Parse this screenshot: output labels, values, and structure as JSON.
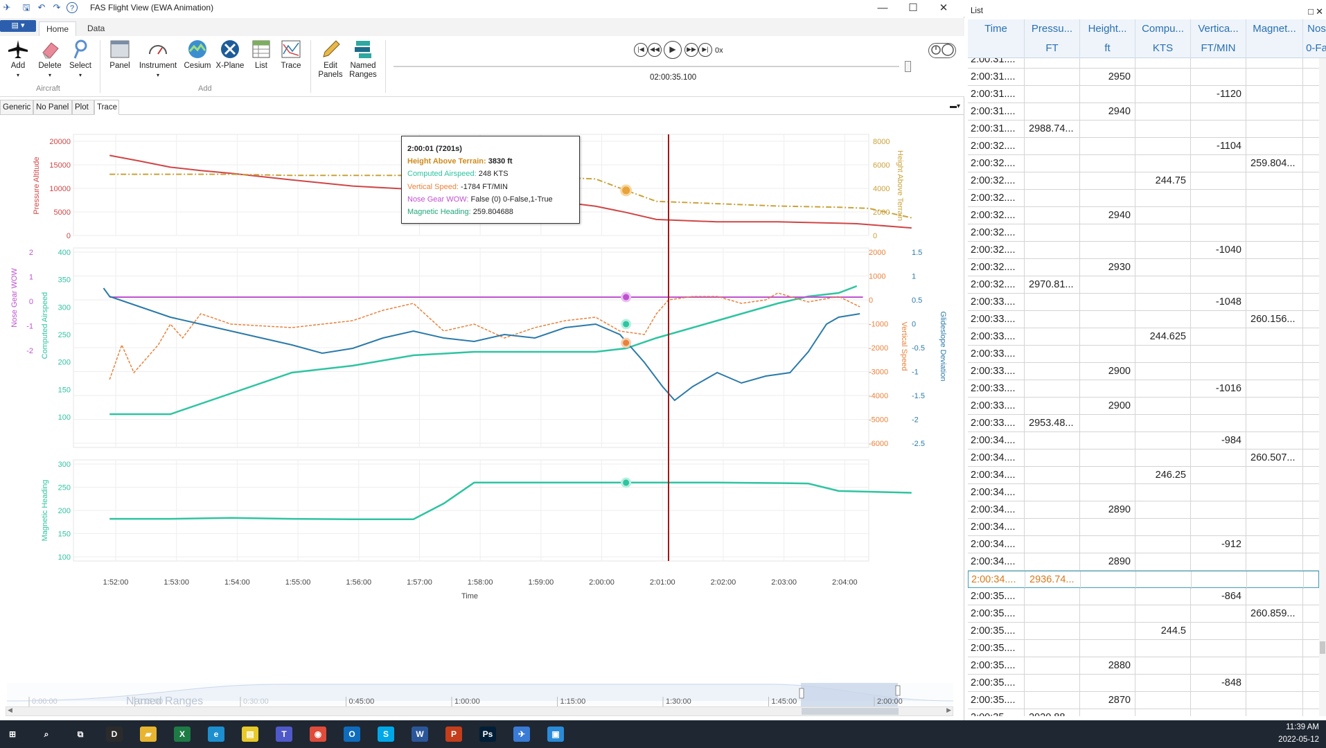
{
  "window": {
    "title": "FAS Flight View (EWA Animation)",
    "minimize": "—",
    "maximize": "☐",
    "close": "✕"
  },
  "ribbon": {
    "tabs": [
      "Home",
      "Data"
    ],
    "buttons": {
      "add": "Add",
      "delete": "Delete",
      "select": "Select",
      "panel": "Panel",
      "instrument": "Instrument",
      "cesium": "Cesium",
      "xplane": "X-Plane",
      "list": "List",
      "trace": "Trace",
      "edit_panels_1": "Edit",
      "edit_panels_2": "Panels",
      "named_ranges_1": "Named",
      "named_ranges_2": "Ranges"
    },
    "groups": {
      "aircraft": "Aircraft",
      "add": "Add"
    },
    "playback": {
      "speed": "0x",
      "time": "02:00:35.100"
    }
  },
  "doc_tabs": [
    "Generic",
    "No Panel",
    "Plot",
    "Trace"
  ],
  "tooltip": {
    "title": "2:00:01 (7201s)",
    "lines": [
      {
        "label": "Height Above Terrain:",
        "value": " 3830 ft",
        "color": "#d08a1c",
        "bold": true
      },
      {
        "label": "Computed Airspeed:",
        "value": " 248 KTS",
        "color": "#2ec4a0",
        "bold": false
      },
      {
        "label": "Vertical Speed:",
        "value": " -1784 FT/MIN",
        "color": "#e8823a",
        "bold": false
      },
      {
        "label": "Nose Gear WOW:",
        "value": " False (0) 0-False,1-True",
        "color": "#c050d0",
        "bold": false
      },
      {
        "label": "Magnetic Heading:",
        "value": " 259.804688",
        "color": "#22a878",
        "bold": false
      }
    ]
  },
  "chart_data": [
    {
      "type": "line",
      "ylabel": "Pressure Altitude",
      "ylabel_right": "Height Above Terrain",
      "yticks": [
        "20000",
        "15000",
        "10000",
        "5000",
        "0"
      ],
      "yticks_right": [
        "8000",
        "6000",
        "4000",
        "2000",
        "0"
      ],
      "series": [
        {
          "name": "Pressure Altitude",
          "color": "#d04545",
          "x": [
            0,
            0.5,
            1,
            1.5,
            2,
            3,
            4,
            5,
            6,
            7,
            8,
            8.5,
            9,
            10,
            11,
            12,
            12.3,
            13.2
          ],
          "values": [
            17000,
            15800,
            14500,
            13800,
            13200,
            11800,
            10500,
            9800,
            9000,
            7800,
            6200,
            4900,
            3400,
            2900,
            2900,
            2600,
            2500,
            1600
          ]
        },
        {
          "name": "Height Above Terrain",
          "color": "#c9a23a",
          "x": [
            0,
            1,
            2,
            3,
            4,
            5,
            6,
            7,
            8,
            8.5,
            9,
            10,
            11,
            12,
            12.5,
            13.2
          ],
          "values": [
            5200,
            5200,
            5200,
            5100,
            5100,
            5100,
            5100,
            5000,
            4800,
            3830,
            2900,
            2700,
            2500,
            2400,
            2300,
            1500
          ]
        }
      ]
    },
    {
      "type": "line",
      "ylabel": "Computed Airspeed",
      "ylabel_left2": "Nose Gear WOW",
      "ylabel_right": "Vertical Speed",
      "ylabel_right2": "Glideslope Deviation",
      "yticks": [
        "400",
        "350",
        "300",
        "250",
        "200",
        "150",
        "100"
      ],
      "yticks_wow": [
        "2",
        "1",
        "0",
        "-1",
        "-2"
      ],
      "yticks_right": [
        "2000",
        "1000",
        "0",
        "-1000",
        "-2000",
        "-3000",
        "-4000",
        "-5000",
        "-6000"
      ],
      "yticks_right2": [
        "1.5",
        "1",
        "0.5",
        "0",
        "-0.5",
        "-1",
        "-1.5",
        "-2",
        "-2.5"
      ],
      "series": [
        {
          "name": "Computed Airspeed",
          "color": "#2ec4a0"
        },
        {
          "name": "Vertical Speed",
          "color": "#e8823a"
        },
        {
          "name": "Nose Gear WOW",
          "color": "#c050d0"
        },
        {
          "name": "Glideslope Deviation",
          "color": "#2a7aa8"
        }
      ]
    },
    {
      "type": "line",
      "ylabel": "Magnetic Heading",
      "yticks": [
        "300",
        "250",
        "200",
        "150",
        "100"
      ],
      "xlabel": "Time",
      "xticks": [
        "1:52:00",
        "1:53:00",
        "1:54:00",
        "1:55:00",
        "1:56:00",
        "1:57:00",
        "1:58:00",
        "1:59:00",
        "2:00:00",
        "2:01:00",
        "2:02:00",
        "2:03:00",
        "2:04:00"
      ],
      "series": [
        {
          "name": "Magnetic Heading",
          "color": "#2ec4a0",
          "x": [
            0,
            1,
            2,
            3,
            4,
            5,
            5.5,
            6,
            7,
            8,
            9,
            10,
            11,
            11.5,
            12,
            13.2
          ],
          "values": [
            182,
            182,
            184,
            182,
            181,
            181,
            215,
            260,
            260,
            260,
            260,
            260,
            259,
            258,
            242,
            238
          ]
        }
      ]
    }
  ],
  "range_bar": {
    "label": "Named Ranges",
    "ticks": [
      "0:00:00",
      "0:15:00",
      "0:30:00",
      "0:45:00",
      "1:00:00",
      "1:15:00",
      "1:30:00",
      "1:45:00",
      "2:00:00"
    ]
  },
  "list": {
    "title": "List",
    "columns": [
      {
        "name": "Time",
        "unit": ""
      },
      {
        "name": "Pressu...",
        "unit": "FT"
      },
      {
        "name": "Height...",
        "unit": "ft"
      },
      {
        "name": "Compu...",
        "unit": "KTS"
      },
      {
        "name": "Vertica...",
        "unit": "FT/MIN"
      },
      {
        "name": "Magnet...",
        "unit": ""
      },
      {
        "name": "Nos",
        "unit": "0-Fa"
      }
    ],
    "rows": [
      [
        "2:00:31....",
        "",
        "",
        "",
        "",
        ""
      ],
      [
        "2:00:31....",
        "",
        "2950",
        "",
        "",
        ""
      ],
      [
        "2:00:31....",
        "",
        "",
        "",
        "-1120",
        ""
      ],
      [
        "2:00:31....",
        "",
        "2940",
        "",
        "",
        ""
      ],
      [
        "2:00:31....",
        "2988.74...",
        "",
        "",
        "",
        ""
      ],
      [
        "2:00:32....",
        "",
        "",
        "",
        "-1104",
        ""
      ],
      [
        "2:00:32....",
        "",
        "",
        "",
        "",
        "259.804..."
      ],
      [
        "2:00:32....",
        "",
        "",
        "244.75",
        "",
        ""
      ],
      [
        "2:00:32....",
        "",
        "",
        "",
        "",
        ""
      ],
      [
        "2:00:32....",
        "",
        "2940",
        "",
        "",
        ""
      ],
      [
        "2:00:32....",
        "",
        "",
        "",
        "",
        ""
      ],
      [
        "2:00:32....",
        "",
        "",
        "",
        "-1040",
        ""
      ],
      [
        "2:00:32....",
        "",
        "2930",
        "",
        "",
        ""
      ],
      [
        "2:00:32....",
        "2970.81...",
        "",
        "",
        "",
        ""
      ],
      [
        "2:00:33....",
        "",
        "",
        "",
        "-1048",
        ""
      ],
      [
        "2:00:33....",
        "",
        "",
        "",
        "",
        "260.156..."
      ],
      [
        "2:00:33....",
        "",
        "",
        "244.625",
        "",
        ""
      ],
      [
        "2:00:33....",
        "",
        "",
        "",
        "",
        ""
      ],
      [
        "2:00:33....",
        "",
        "2900",
        "",
        "",
        ""
      ],
      [
        "2:00:33....",
        "",
        "",
        "",
        "-1016",
        ""
      ],
      [
        "2:00:33....",
        "",
        "2900",
        "",
        "",
        ""
      ],
      [
        "2:00:33....",
        "2953.48...",
        "",
        "",
        "",
        ""
      ],
      [
        "2:00:34....",
        "",
        "",
        "",
        "-984",
        ""
      ],
      [
        "2:00:34....",
        "",
        "",
        "",
        "",
        "260.507..."
      ],
      [
        "2:00:34....",
        "",
        "",
        "246.25",
        "",
        ""
      ],
      [
        "2:00:34....",
        "",
        "",
        "",
        "",
        ""
      ],
      [
        "2:00:34....",
        "",
        "2890",
        "",
        "",
        ""
      ],
      [
        "2:00:34....",
        "",
        "",
        "",
        "",
        ""
      ],
      [
        "2:00:34....",
        "",
        "",
        "",
        "-912",
        ""
      ],
      [
        "2:00:34....",
        "",
        "2890",
        "",
        "",
        ""
      ],
      [
        "2:00:34....",
        "2936.74...",
        "",
        "",
        "",
        ""
      ],
      [
        "2:00:35....",
        "",
        "",
        "",
        "-864",
        ""
      ],
      [
        "2:00:35....",
        "",
        "",
        "",
        "",
        "260.859..."
      ],
      [
        "2:00:35....",
        "",
        "",
        "244.5",
        "",
        ""
      ],
      [
        "2:00:35....",
        "",
        "",
        "",
        "",
        ""
      ],
      [
        "2:00:35....",
        "",
        "2880",
        "",
        "",
        ""
      ],
      [
        "2:00:35....",
        "",
        "",
        "",
        "-848",
        ""
      ],
      [
        "2:00:35....",
        "",
        "2870",
        "",
        "",
        ""
      ],
      [
        "2:00:35....",
        "2920.88...",
        "",
        "",
        "",
        ""
      ]
    ],
    "selected_row": 30
  },
  "taskbar": {
    "time": "11:39 AM",
    "date": "2022-05-12",
    "apps": [
      "start-icon",
      "search-icon",
      "task-view-icon",
      "dell-icon",
      "file-explorer-icon",
      "excel-icon",
      "edge-icon",
      "sticky-notes-icon",
      "teams-icon",
      "chrome-icon",
      "outlook-icon",
      "skype-icon",
      "word-icon",
      "powerpoint-icon",
      "photoshop-icon",
      "flightview-icon",
      "photos-icon"
    ]
  }
}
